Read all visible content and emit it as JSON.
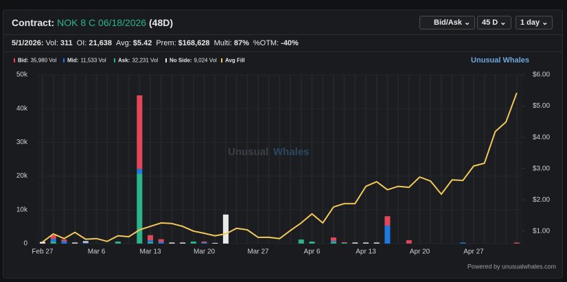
{
  "header": {
    "label": "Contract:",
    "contract": "NOK 8 C 06/18/2026",
    "days": "(48D)",
    "buttons": [
      "Bid/Ask",
      "45 D",
      "1 day"
    ]
  },
  "info": {
    "date": "5/1/2026:",
    "items": [
      {
        "label": "Vol:",
        "value": "311"
      },
      {
        "label": "OI:",
        "value": "21,638"
      },
      {
        "label": "Avg:",
        "value": "$5.42"
      },
      {
        "label": "Prem:",
        "value": "$168,628"
      },
      {
        "label": "Multi:",
        "value": "87%"
      },
      {
        "label": "%OTM:",
        "value": "-40%"
      }
    ]
  },
  "brand": "Unusual Whales",
  "watermark": {
    "a": "Unusual",
    "b": "Whales"
  },
  "footer": "Powered by unusualwhales.com",
  "chart_data": {
    "type": "bar",
    "categories": [
      "Feb 27",
      null,
      null,
      null,
      null,
      "Mar 6",
      null,
      null,
      null,
      null,
      "Mar 13",
      null,
      null,
      null,
      null,
      "Mar 20",
      null,
      null,
      null,
      null,
      "Mar 27",
      null,
      null,
      null,
      null,
      "Apr 6",
      null,
      null,
      null,
      null,
      "Apr 13",
      null,
      null,
      null,
      null,
      "Apr 20",
      null,
      null,
      null,
      null,
      "Apr 27",
      null,
      null,
      null,
      null
    ],
    "series": [
      {
        "name": "Bid:",
        "total": "35,980 Vol",
        "color": "#e0485a",
        "values": [
          0,
          1100,
          500,
          0,
          0,
          0,
          0,
          0,
          0,
          21800,
          1500,
          800,
          0,
          0,
          0,
          300,
          0,
          0,
          0,
          0,
          0,
          0,
          0,
          0,
          0,
          0,
          0,
          1000,
          200,
          0,
          0,
          0,
          2800,
          0,
          1000,
          0,
          0,
          0,
          0,
          0,
          0,
          0,
          0,
          0,
          300
        ]
      },
      {
        "name": "Mid:",
        "total": "11,533 Vol",
        "color": "#1f7ae0",
        "values": [
          0,
          800,
          700,
          0,
          300,
          0,
          0,
          0,
          0,
          1400,
          600,
          500,
          0,
          0,
          0,
          300,
          0,
          0,
          0,
          0,
          0,
          0,
          0,
          0,
          0,
          0,
          0,
          300,
          0,
          0,
          0,
          0,
          5300,
          0,
          0,
          0,
          0,
          0,
          0,
          300,
          0,
          0,
          0,
          0,
          0
        ]
      },
      {
        "name": "Ask:",
        "total": "32,231 Vol",
        "color": "#2bb38a",
        "values": [
          0,
          600,
          0,
          0,
          0,
          0,
          0,
          600,
          0,
          20700,
          400,
          0,
          0,
          0,
          600,
          0,
          0,
          0,
          0,
          0,
          0,
          0,
          0,
          0,
          1200,
          600,
          0,
          500,
          200,
          0,
          0,
          0,
          0,
          0,
          0,
          0,
          0,
          0,
          0,
          0,
          0,
          0,
          0,
          0,
          0
        ]
      },
      {
        "name": "No Side:",
        "total": "9,024 Vol",
        "color": "#e8e8e8",
        "values": [
          500,
          0,
          0,
          300,
          400,
          0,
          0,
          0,
          0,
          0,
          0,
          0,
          300,
          300,
          0,
          0,
          200,
          8600,
          0,
          0,
          0,
          0,
          0,
          0,
          0,
          0,
          0,
          0,
          0,
          300,
          300,
          300,
          0,
          0,
          0,
          0,
          0,
          0,
          0,
          0,
          0,
          0,
          0,
          0,
          0
        ]
      },
      {
        "name": "Avg Fill",
        "type": "line",
        "axis": "y2",
        "color": "#f2c95a",
        "values": [
          0.65,
          0.91,
          0.76,
          0.96,
          0.74,
          0.76,
          0.67,
          0.85,
          0.82,
          1.04,
          1.15,
          1.26,
          1.24,
          1.15,
          1.0,
          0.93,
          0.85,
          0.91,
          1.09,
          1.04,
          0.8,
          0.8,
          0.76,
          1.02,
          1.26,
          1.55,
          1.26,
          1.77,
          1.88,
          1.88,
          2.43,
          2.58,
          2.32,
          2.43,
          2.4,
          2.73,
          2.6,
          2.18,
          2.64,
          2.62,
          3.08,
          3.17,
          4.18,
          4.49,
          5.42
        ]
      }
    ],
    "ylim": [
      0,
      50000
    ],
    "yticks": [
      0,
      {
        "value": 10000,
        "label": "10k"
      },
      {
        "value": 20000,
        "label": "20k"
      },
      {
        "value": 30000,
        "label": "30k"
      },
      {
        "value": 40000,
        "label": "40k"
      },
      {
        "value": 50000,
        "label": "50k"
      }
    ],
    "y2lim": [
      0.6,
      6
    ],
    "y2ticks": [
      {
        "value": 1,
        "label": "$1.00"
      },
      {
        "value": 2,
        "label": "$2.00"
      },
      {
        "value": 3,
        "label": "$3.00"
      },
      {
        "value": 4,
        "label": "$4.00"
      },
      {
        "value": 5,
        "label": "$5.00"
      },
      {
        "value": 6,
        "label": "$6.00"
      }
    ],
    "grid": true
  }
}
